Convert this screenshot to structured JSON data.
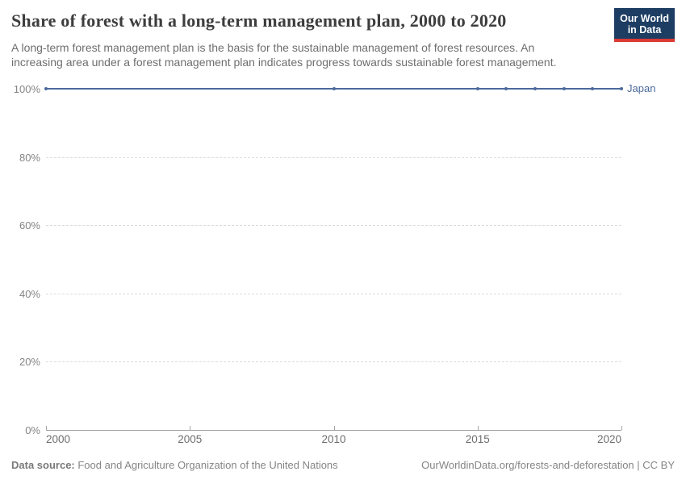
{
  "header": {
    "title": "Share of forest with a long-term management plan, 2000 to 2020",
    "subtitle": "A long-term forest management plan is the basis for the sustainable management of forest resources. An increasing area under a forest management plan indicates progress towards sustainable forest management.",
    "logo": {
      "line1": "Our World",
      "line2": "in Data"
    }
  },
  "chart_data": {
    "type": "line",
    "title": "Share of forest with a long-term management plan, 2000 to 2020",
    "xlabel": "",
    "ylabel": "",
    "xlim": [
      2000,
      2020
    ],
    "ylim": [
      0,
      100
    ],
    "grid": "horizontal-dashed",
    "legend_position": "end-of-line",
    "series": [
      {
        "name": "Japan",
        "color": "#4C6A9C",
        "x": [
          2000,
          2010,
          2015,
          2016,
          2017,
          2018,
          2019,
          2020
        ],
        "values": [
          100,
          100,
          100,
          100,
          100,
          100,
          100,
          100
        ]
      }
    ],
    "yticks": [
      {
        "value": 0,
        "label": "0%"
      },
      {
        "value": 20,
        "label": "20%"
      },
      {
        "value": 40,
        "label": "40%"
      },
      {
        "value": 60,
        "label": "60%"
      },
      {
        "value": 80,
        "label": "80%"
      },
      {
        "value": 100,
        "label": "100%"
      }
    ],
    "xticks": [
      {
        "value": 2000,
        "label": "2000"
      },
      {
        "value": 2005,
        "label": "2005"
      },
      {
        "value": 2010,
        "label": "2010"
      },
      {
        "value": 2015,
        "label": "2015"
      },
      {
        "value": 2020,
        "label": "2020"
      }
    ]
  },
  "footer": {
    "datasource_label": "Data source:",
    "datasource_value": " Food and Agriculture Organization of the United Nations",
    "link": "OurWorldinData.org/forests-and-deforestation",
    "license": " | CC BY"
  },
  "colors": {
    "accent_blue": "#4C6A9C",
    "grid": "#dcdcdc",
    "axis": "#a5a5a5",
    "logo_navy": "#1d3d63",
    "logo_red": "#d93a34",
    "title_text": "#3d3d3d",
    "muted_text": "#858585"
  }
}
